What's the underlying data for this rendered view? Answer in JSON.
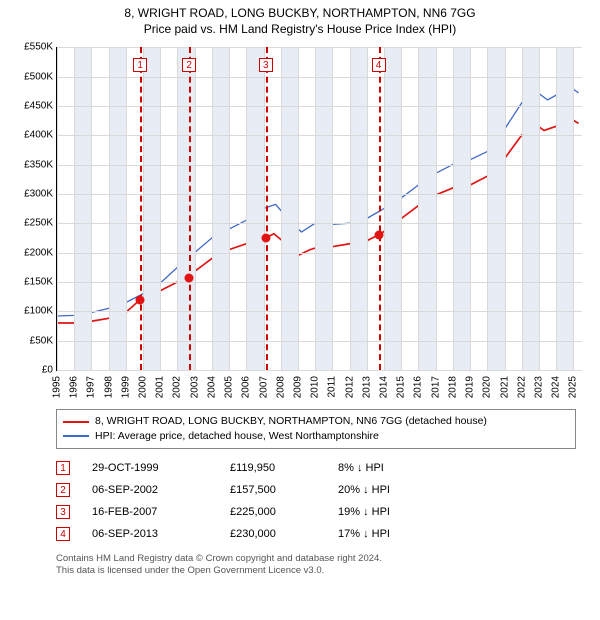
{
  "title": {
    "line1": "8, WRIGHT ROAD, LONG BUCKBY, NORTHAMPTON, NN6 7GG",
    "line2": "Price paid vs. HM Land Registry's House Price Index (HPI)",
    "fontsize": 12,
    "color": "#000000"
  },
  "chart": {
    "type": "line",
    "background_color": "#ffffff",
    "grid_color": "#d9d9d9",
    "vband_color": "#e8ecf4",
    "axis_color": "#000000",
    "marker_border_color": "#cc0000",
    "x": {
      "min": 1995,
      "max": 2025.5,
      "ticks": [
        1995,
        1996,
        1997,
        1998,
        1999,
        2000,
        2001,
        2002,
        2003,
        2004,
        2005,
        2006,
        2007,
        2008,
        2009,
        2010,
        2011,
        2012,
        2013,
        2014,
        2015,
        2016,
        2017,
        2018,
        2019,
        2020,
        2021,
        2022,
        2023,
        2024,
        2025
      ],
      "label_fontsize": 10
    },
    "y": {
      "min": 0,
      "max": 550000,
      "ticks": [
        0,
        50000,
        100000,
        150000,
        200000,
        250000,
        300000,
        350000,
        400000,
        450000,
        500000,
        550000
      ],
      "labels": [
        "£0",
        "£50K",
        "£100K",
        "£150K",
        "£200K",
        "£250K",
        "£300K",
        "£350K",
        "£400K",
        "£450K",
        "£500K",
        "£550K"
      ],
      "label_fontsize": 10
    },
    "vbands_start": 1995,
    "series": [
      {
        "name": "property",
        "label": "8, WRIGHT ROAD, LONG BUCKBY, NORTHAMPTON, NN6 7GG (detached house)",
        "color": "#e11313",
        "width": 1.7,
        "points": [
          [
            1995.0,
            80000
          ],
          [
            1996.0,
            80000
          ],
          [
            1997.0,
            83000
          ],
          [
            1998.0,
            88000
          ],
          [
            1999.0,
            98000
          ],
          [
            1999.83,
            119950
          ],
          [
            2000.5,
            128000
          ],
          [
            2001.0,
            135000
          ],
          [
            2002.0,
            150000
          ],
          [
            2002.68,
            157500
          ],
          [
            2003.0,
            168000
          ],
          [
            2004.0,
            190000
          ],
          [
            2005.0,
            205000
          ],
          [
            2006.0,
            215000
          ],
          [
            2007.13,
            225000
          ],
          [
            2007.6,
            232000
          ],
          [
            2008.3,
            215000
          ],
          [
            2009.0,
            195000
          ],
          [
            2009.7,
            205000
          ],
          [
            2010.5,
            212000
          ],
          [
            2011.0,
            210000
          ],
          [
            2012.0,
            215000
          ],
          [
            2013.0,
            220000
          ],
          [
            2013.68,
            230000
          ],
          [
            2014.5,
            245000
          ],
          [
            2015.0,
            258000
          ],
          [
            2016.0,
            280000
          ],
          [
            2017.0,
            298000
          ],
          [
            2018.0,
            310000
          ],
          [
            2019.0,
            315000
          ],
          [
            2020.0,
            330000
          ],
          [
            2021.0,
            360000
          ],
          [
            2022.0,
            400000
          ],
          [
            2022.7,
            420000
          ],
          [
            2023.3,
            408000
          ],
          [
            2024.0,
            415000
          ],
          [
            2025.0,
            425000
          ],
          [
            2025.3,
            420000
          ]
        ]
      },
      {
        "name": "hpi",
        "label": "HPI: Average price, detached house, West Northamptonshire",
        "color": "#4169c8",
        "width": 1.3,
        "points": [
          [
            1995.0,
            92000
          ],
          [
            1996.0,
            93000
          ],
          [
            1997.0,
            98000
          ],
          [
            1998.0,
            105000
          ],
          [
            1999.0,
            115000
          ],
          [
            2000.0,
            130000
          ],
          [
            2001.0,
            148000
          ],
          [
            2002.0,
            175000
          ],
          [
            2003.0,
            200000
          ],
          [
            2004.0,
            225000
          ],
          [
            2005.0,
            240000
          ],
          [
            2006.0,
            255000
          ],
          [
            2007.0,
            275000
          ],
          [
            2007.7,
            282000
          ],
          [
            2008.5,
            255000
          ],
          [
            2009.2,
            235000
          ],
          [
            2010.0,
            250000
          ],
          [
            2011.0,
            248000
          ],
          [
            2012.0,
            250000
          ],
          [
            2013.0,
            258000
          ],
          [
            2014.0,
            275000
          ],
          [
            2015.0,
            293000
          ],
          [
            2016.0,
            315000
          ],
          [
            2017.0,
            335000
          ],
          [
            2018.0,
            350000
          ],
          [
            2019.0,
            358000
          ],
          [
            2020.0,
            372000
          ],
          [
            2021.0,
            410000
          ],
          [
            2022.0,
            455000
          ],
          [
            2022.8,
            475000
          ],
          [
            2023.5,
            460000
          ],
          [
            2024.0,
            468000
          ],
          [
            2025.0,
            478000
          ],
          [
            2025.3,
            472000
          ]
        ]
      }
    ],
    "sale_markers": [
      {
        "n": "1",
        "x": 1999.83,
        "y": 119950
      },
      {
        "n": "2",
        "x": 2002.68,
        "y": 157500
      },
      {
        "n": "3",
        "x": 2007.13,
        "y": 225000
      },
      {
        "n": "4",
        "x": 2013.68,
        "y": 230000
      }
    ],
    "datapoint_color": "#e11313",
    "marker_top_y": 520000
  },
  "legend": {
    "items": [
      {
        "color": "#e11313",
        "label": "8, WRIGHT ROAD, LONG BUCKBY, NORTHAMPTON, NN6 7GG (detached house)"
      },
      {
        "color": "#4169c8",
        "label": "HPI: Average price, detached house, West Northamptonshire"
      }
    ],
    "border_color": "#888888",
    "fontsize": 10.5
  },
  "sales_table": {
    "border_color": "#cc0000",
    "rows": [
      {
        "n": "1",
        "date": "29-OCT-1999",
        "price": "£119,950",
        "delta": "8% ↓ HPI"
      },
      {
        "n": "2",
        "date": "06-SEP-2002",
        "price": "£157,500",
        "delta": "20% ↓ HPI"
      },
      {
        "n": "3",
        "date": "16-FEB-2007",
        "price": "£225,000",
        "delta": "19% ↓ HPI"
      },
      {
        "n": "4",
        "date": "06-SEP-2013",
        "price": "£230,000",
        "delta": "17% ↓ HPI"
      }
    ],
    "fontsize": 11
  },
  "footer": {
    "line1": "Contains HM Land Registry data © Crown copyright and database right 2024.",
    "line2": "This data is licensed under the Open Government Licence v3.0.",
    "color": "#555555",
    "fontsize": 9.5
  }
}
